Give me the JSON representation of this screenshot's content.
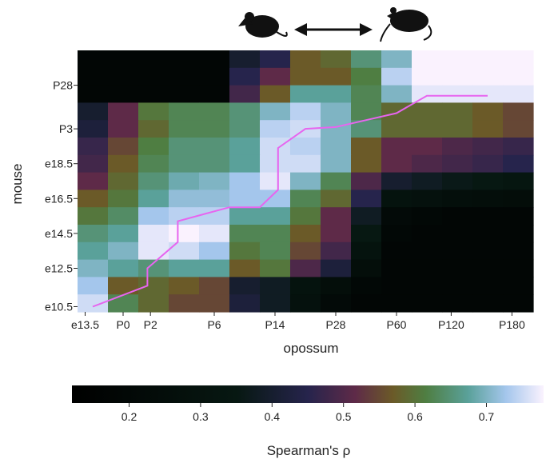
{
  "chart_data": {
    "type": "heatmap",
    "xlabel": "opossum",
    "ylabel": "mouse",
    "x_tick_labels": [
      "e13.5",
      "P0",
      "P2",
      "P6",
      "P14",
      "P28",
      "P60",
      "P120",
      "P180"
    ],
    "y_tick_labels": [
      "e10.5",
      "e12.5",
      "e14.5",
      "e16.5",
      "e18.5",
      "P3",
      "P28"
    ],
    "colorbar": {
      "label": "Spearman's ρ",
      "ticks": [
        "0.2",
        "0.3",
        "0.4",
        "0.5",
        "0.6",
        "0.7"
      ],
      "range": [
        0.12,
        0.78
      ]
    },
    "values": [
      [
        0.18,
        0.18,
        0.18,
        0.18,
        0.18,
        0.4,
        0.45,
        0.6,
        0.62,
        0.68,
        0.72,
        0.78,
        0.78,
        0.78,
        0.78
      ],
      [
        0.18,
        0.18,
        0.18,
        0.18,
        0.18,
        0.45,
        0.55,
        0.6,
        0.6,
        0.65,
        0.75,
        0.78,
        0.78,
        0.78,
        0.78
      ],
      [
        0.18,
        0.18,
        0.18,
        0.18,
        0.18,
        0.5,
        0.6,
        0.7,
        0.7,
        0.66,
        0.72,
        0.77,
        0.77,
        0.77,
        0.77
      ],
      [
        0.4,
        0.55,
        0.64,
        0.66,
        0.66,
        0.68,
        0.72,
        0.75,
        0.72,
        0.66,
        0.62,
        0.62,
        0.62,
        0.6,
        0.58
      ],
      [
        0.42,
        0.55,
        0.62,
        0.66,
        0.66,
        0.68,
        0.75,
        0.76,
        0.72,
        0.68,
        0.62,
        0.62,
        0.62,
        0.6,
        0.58
      ],
      [
        0.48,
        0.58,
        0.65,
        0.68,
        0.68,
        0.7,
        0.76,
        0.75,
        0.72,
        0.6,
        0.55,
        0.55,
        0.52,
        0.5,
        0.48
      ],
      [
        0.5,
        0.6,
        0.66,
        0.68,
        0.68,
        0.7,
        0.76,
        0.76,
        0.72,
        0.6,
        0.55,
        0.52,
        0.5,
        0.48,
        0.45
      ],
      [
        0.55,
        0.62,
        0.68,
        0.71,
        0.72,
        0.74,
        0.77,
        0.72,
        0.66,
        0.52,
        0.4,
        0.38,
        0.36,
        0.35,
        0.33
      ],
      [
        0.6,
        0.64,
        0.7,
        0.73,
        0.73,
        0.74,
        0.74,
        0.66,
        0.62,
        0.45,
        0.3,
        0.28,
        0.26,
        0.25,
        0.24
      ],
      [
        0.64,
        0.67,
        0.74,
        0.75,
        0.75,
        0.7,
        0.7,
        0.64,
        0.55,
        0.38,
        0.22,
        0.2,
        0.18,
        0.18,
        0.18
      ],
      [
        0.68,
        0.7,
        0.77,
        0.78,
        0.77,
        0.66,
        0.66,
        0.6,
        0.55,
        0.35,
        0.2,
        0.18,
        0.18,
        0.18,
        0.18
      ],
      [
        0.7,
        0.72,
        0.77,
        0.76,
        0.74,
        0.64,
        0.66,
        0.58,
        0.5,
        0.3,
        0.18,
        0.18,
        0.18,
        0.18,
        0.18
      ],
      [
        0.72,
        0.7,
        0.68,
        0.7,
        0.7,
        0.6,
        0.64,
        0.52,
        0.42,
        0.25,
        0.18,
        0.18,
        0.18,
        0.18,
        0.18
      ],
      [
        0.74,
        0.6,
        0.62,
        0.6,
        0.58,
        0.4,
        0.38,
        0.3,
        0.25,
        0.2,
        0.18,
        0.18,
        0.18,
        0.18,
        0.18
      ],
      [
        0.76,
        0.66,
        0.62,
        0.58,
        0.58,
        0.42,
        0.38,
        0.28,
        0.22,
        0.18,
        0.18,
        0.18,
        0.18,
        0.18,
        0.18
      ]
    ],
    "trajectory": [
      [
        0.5,
        0.3
      ],
      [
        2.3,
        1.5
      ],
      [
        2.3,
        2.5
      ],
      [
        3.3,
        4.0
      ],
      [
        3.3,
        5.2
      ],
      [
        5.0,
        6.0
      ],
      [
        6.0,
        6.0
      ],
      [
        6.6,
        7.0
      ],
      [
        6.6,
        9.4
      ],
      [
        7.5,
        10.5
      ],
      [
        8.5,
        10.6
      ],
      [
        9.5,
        11.0
      ],
      [
        10.5,
        11.4
      ],
      [
        11.5,
        12.4
      ],
      [
        13.5,
        12.4
      ]
    ],
    "trajectory_color": "#e765ef",
    "icons": [
      "mouse-silhouette-icon",
      "double-arrow-icon",
      "opossum-silhouette-icon"
    ]
  }
}
